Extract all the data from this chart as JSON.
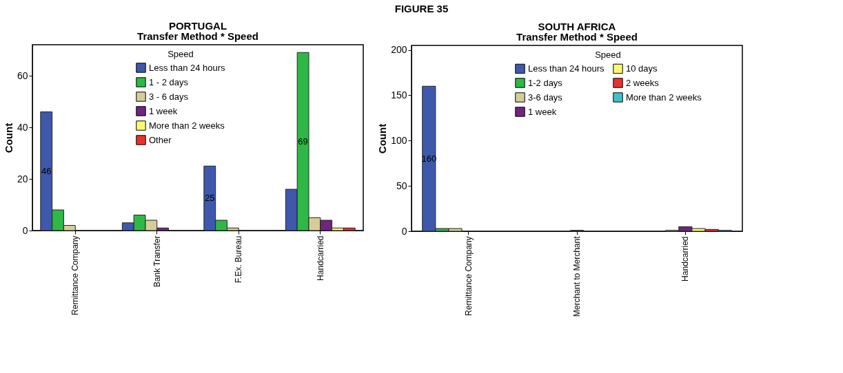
{
  "chart_data": [
    {
      "type": "bar",
      "title": "PORTUGAL",
      "subtitle": "Transfer Method * Speed",
      "ylabel": "Count",
      "legend_title": "Speed",
      "legend": "top",
      "grid": false,
      "annotations": [
        "FIGURE 35"
      ],
      "categories": [
        "Remittance Company",
        "Bank Transfer",
        "F.Ex. Bureau",
        "Handcarried"
      ],
      "ylim": [
        0,
        72
      ],
      "yticks": [
        0,
        20,
        40,
        60
      ],
      "series": [
        {
          "name": "Less than 24 hours",
          "color": "#3e58ac",
          "values": [
            46,
            3,
            25,
            16
          ],
          "value_labels": [
            "46",
            null,
            "25",
            null
          ]
        },
        {
          "name": "1 - 2 days",
          "color": "#2eb845",
          "values": [
            8,
            6,
            4,
            69
          ],
          "value_labels": [
            null,
            null,
            null,
            "69"
          ]
        },
        {
          "name": "3 - 6 days",
          "color": "#d3ce97",
          "values": [
            2,
            4,
            1,
            5
          ]
        },
        {
          "name": "1 week",
          "color": "#70257f",
          "values": [
            0,
            1,
            0,
            4
          ]
        },
        {
          "name": "More than 2 weeks",
          "color": "#fbf873",
          "values": [
            0,
            0,
            0,
            1
          ]
        },
        {
          "name": "Other",
          "color": "#e8312f",
          "values": [
            0,
            0,
            0,
            1
          ]
        }
      ]
    },
    {
      "type": "bar",
      "title": "SOUTH AFRICA",
      "subtitle": "Transfer Method * Speed",
      "ylabel": "Count",
      "legend_title": "Speed",
      "legend": "top",
      "grid": false,
      "categories": [
        "Remittance Company",
        "Merchant to Merchant",
        "Handcarried"
      ],
      "ylim": [
        0,
        205
      ],
      "yticks": [
        0,
        50,
        100,
        150,
        200
      ],
      "series": [
        {
          "name": "Less than 24 hours",
          "color": "#3e58ac",
          "values": [
            160,
            0,
            0
          ],
          "value_labels": [
            "160",
            null,
            null
          ]
        },
        {
          "name": "1-2 days",
          "color": "#2eb845",
          "values": [
            3,
            0,
            0
          ]
        },
        {
          "name": "3-6 days",
          "color": "#d3ce97",
          "values": [
            3,
            0,
            1
          ]
        },
        {
          "name": "1 week",
          "color": "#70257f",
          "values": [
            0,
            1,
            5
          ]
        },
        {
          "name": "10 days",
          "color": "#fbf873",
          "values": [
            0,
            0,
            3
          ]
        },
        {
          "name": "2 weeks",
          "color": "#e8312f",
          "values": [
            0,
            0,
            2
          ]
        },
        {
          "name": "More than 2 weeks",
          "color": "#3fc1c9",
          "values": [
            0,
            0,
            1
          ]
        }
      ]
    }
  ]
}
